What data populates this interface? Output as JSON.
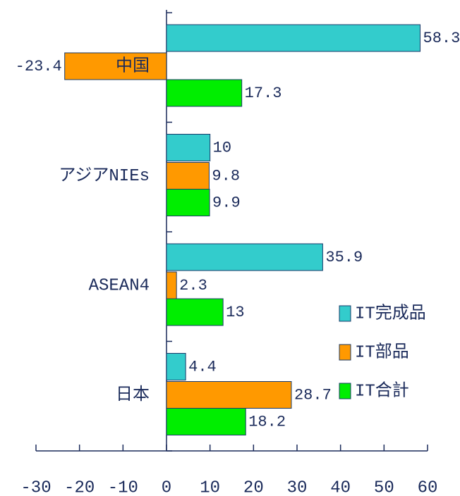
{
  "chart_data": {
    "type": "barh",
    "categories": [
      "中国",
      "アジアNIEs",
      "ASEAN4",
      "日本"
    ],
    "series": [
      {
        "name": "IT完成品",
        "color": "#33cccc",
        "values": [
          58.3,
          10,
          35.9,
          4.4
        ]
      },
      {
        "name": "IT部品",
        "color": "#ff9900",
        "values": [
          -23.4,
          9.8,
          2.3,
          28.7
        ]
      },
      {
        "name": "IT合計",
        "color": "#00ee00",
        "values": [
          17.3,
          9.9,
          13,
          18.2
        ]
      }
    ],
    "xlim": [
      -30,
      60
    ],
    "xticks": [
      -30,
      -20,
      -10,
      0,
      10,
      20,
      30,
      40,
      50,
      60
    ],
    "legend": "lower right"
  }
}
